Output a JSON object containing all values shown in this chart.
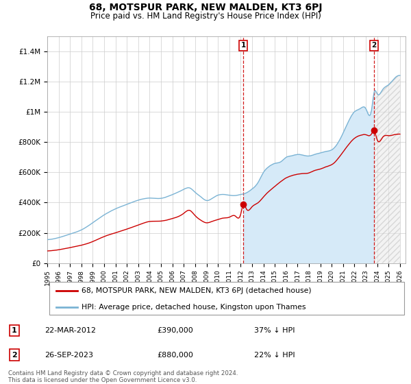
{
  "title": "68, MOTSPUR PARK, NEW MALDEN, KT3 6PJ",
  "subtitle": "Price paid vs. HM Land Registry's House Price Index (HPI)",
  "ylim": [
    0,
    1500000
  ],
  "yticks": [
    0,
    200000,
    400000,
    600000,
    800000,
    1000000,
    1200000,
    1400000
  ],
  "ytick_labels": [
    "£0",
    "£200K",
    "£400K",
    "£600K",
    "£800K",
    "£1M",
    "£1.2M",
    "£1.4M"
  ],
  "xlim": [
    1995.0,
    2026.5
  ],
  "hpi_color": "#7ab3d4",
  "property_color": "#cc0000",
  "fill_color": "#d6eaf8",
  "hatch_color": "#cccccc",
  "grid_color": "#cccccc",
  "legend_label_property": "68, MOTSPUR PARK, NEW MALDEN, KT3 6PJ (detached house)",
  "legend_label_hpi": "HPI: Average price, detached house, Kingston upon Thames",
  "annotation1_date": "22-MAR-2012",
  "annotation1_price": "£390,000",
  "annotation1_hpi": "37% ↓ HPI",
  "annotation2_date": "26-SEP-2023",
  "annotation2_price": "£880,000",
  "annotation2_hpi": "22% ↓ HPI",
  "footer": "Contains HM Land Registry data © Crown copyright and database right 2024.\nThis data is licensed under the Open Government Licence v3.0.",
  "point1_x": 2012.22,
  "point1_y": 390000,
  "point2_x": 2023.73,
  "point2_y": 880000
}
